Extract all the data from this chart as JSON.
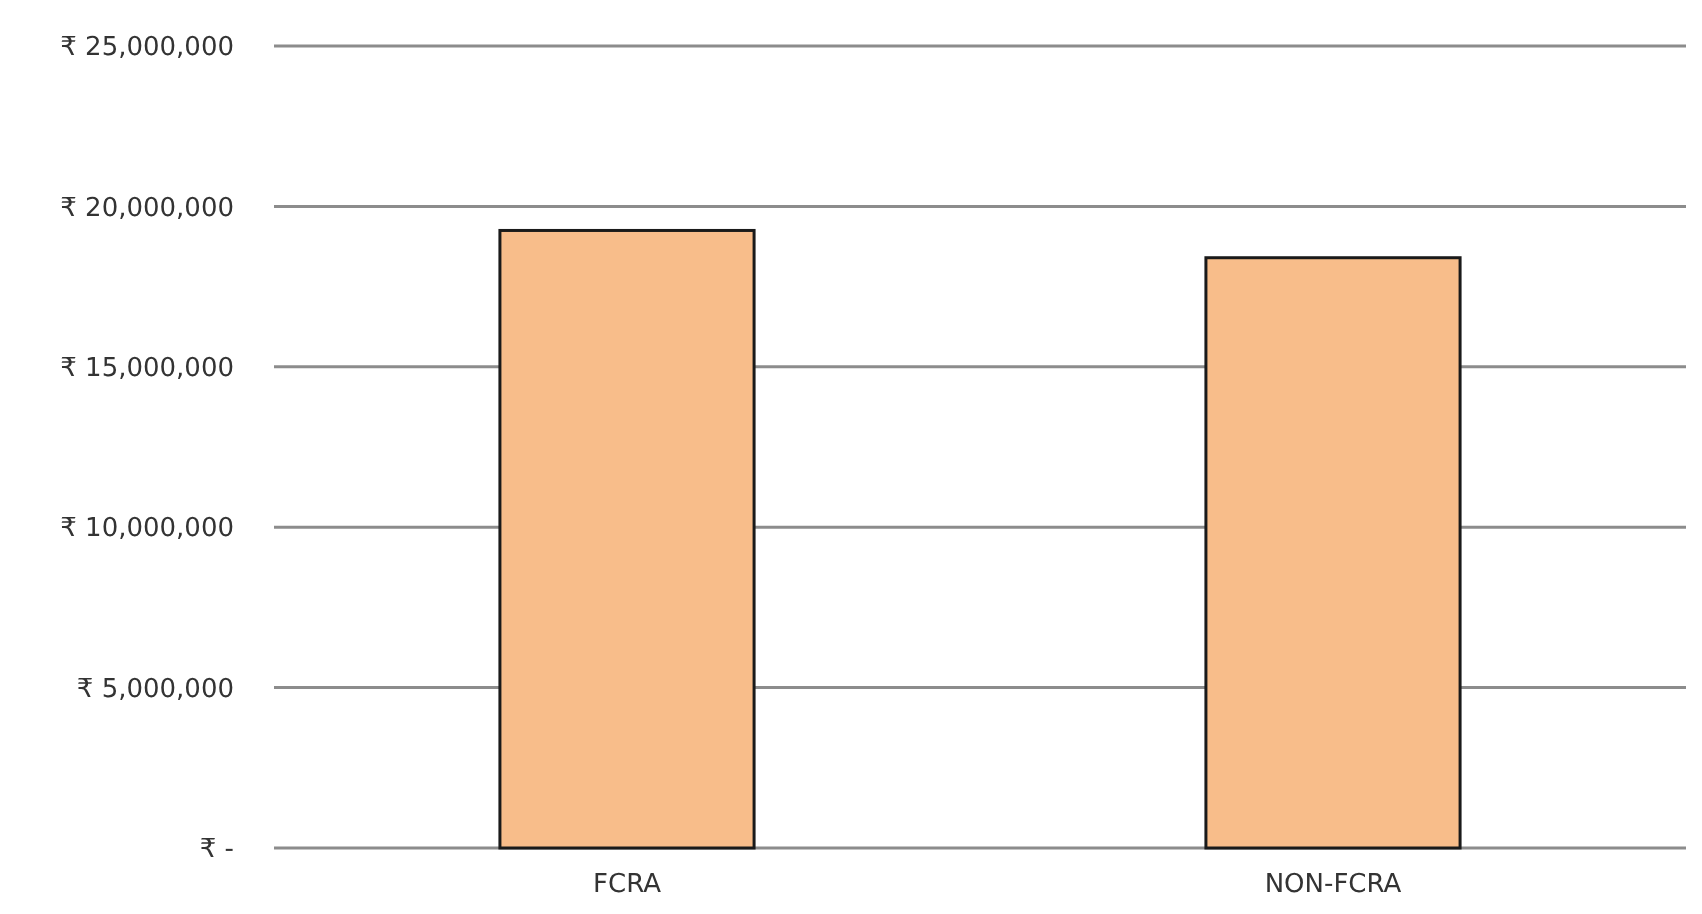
{
  "chart_data": {
    "type": "bar",
    "categories": [
      "FCRA",
      "NON-FCRA"
    ],
    "values": [
      19250000,
      18400000
    ],
    "color": "#f8bd8a",
    "ylim": [
      0,
      25000000
    ],
    "yticks": [
      {
        "value": 0,
        "label": "₹ -"
      },
      {
        "value": 5000000,
        "label": "₹ 5,000,000"
      },
      {
        "value": 10000000,
        "label": "₹ 10,000,000"
      },
      {
        "value": 15000000,
        "label": "₹ 15,000,000"
      },
      {
        "value": 20000000,
        "label": "₹ 20,000,000"
      },
      {
        "value": 25000000,
        "label": "₹ 25,000,000"
      }
    ],
    "grid": "y"
  }
}
